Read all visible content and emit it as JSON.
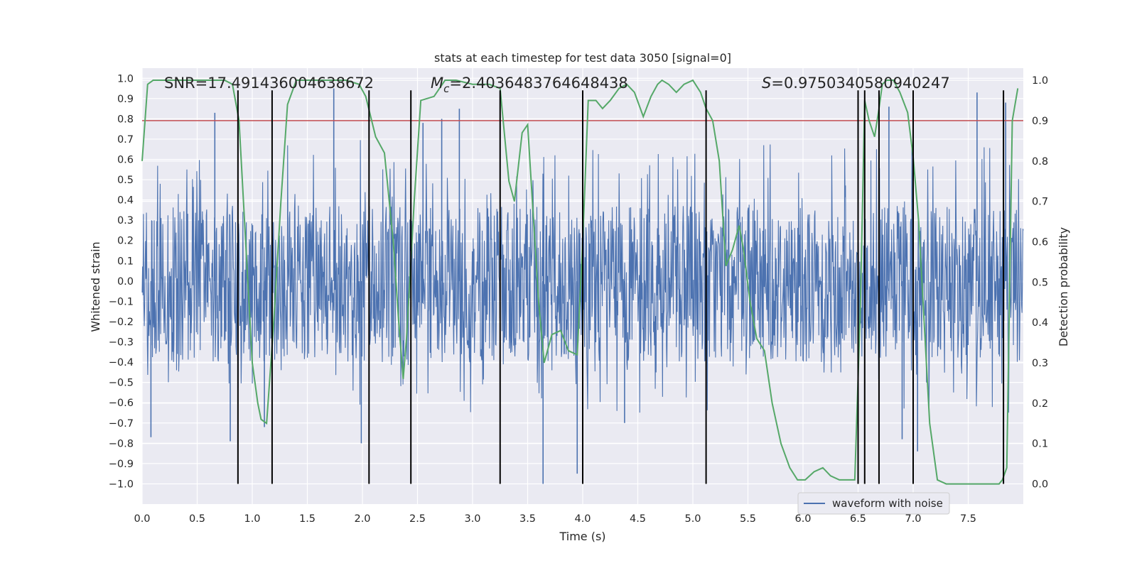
{
  "chart_data": {
    "type": "line",
    "title": "stats at each timestep for test data 3050 [signal=0]",
    "xlabel": "Time (s)",
    "ylabel": "Whitened strain",
    "y2label": "Detection probability",
    "xlim": [
      0.0,
      8.0
    ],
    "ylim": [
      -1.1,
      1.05
    ],
    "y2lim": [
      -0.05,
      1.03
    ],
    "grid": true,
    "background": "#eaeaf2",
    "x_ticks": [
      0.0,
      0.5,
      1.0,
      1.5,
      2.0,
      2.5,
      3.0,
      3.5,
      4.0,
      4.5,
      5.0,
      5.5,
      6.0,
      6.5,
      7.0,
      7.5
    ],
    "x_tick_labels": [
      "0.0",
      "0.5",
      "1.0",
      "1.5",
      "2.0",
      "2.5",
      "3.0",
      "3.5",
      "4.0",
      "4.5",
      "5.0",
      "5.5",
      "6.0",
      "6.5",
      "7.0",
      "7.5"
    ],
    "y_ticks": [
      1.0,
      0.9,
      0.8,
      0.7,
      0.6,
      0.5,
      0.4,
      0.3,
      0.2,
      0.1,
      0.0,
      -0.1,
      -0.2,
      -0.3,
      -0.4,
      -0.5,
      -0.6,
      -0.7,
      -0.8,
      -0.9,
      -1.0
    ],
    "y_tick_labels": [
      "1.0",
      "0.9",
      "0.8",
      "0.7",
      "0.6",
      "0.5",
      "0.4",
      "0.3",
      "0.2",
      "0.1",
      "0.0",
      "−0.1",
      "−0.2",
      "−0.3",
      "−0.4",
      "−0.5",
      "−0.6",
      "−0.7",
      "−0.8",
      "−0.9",
      "−1.0"
    ],
    "y2_ticks": [
      1.0,
      0.9,
      0.8,
      0.7,
      0.6,
      0.5,
      0.4,
      0.3,
      0.2,
      0.1,
      0.0
    ],
    "y2_tick_labels": [
      "1.0",
      "0.9",
      "0.8",
      "0.7",
      "0.6",
      "0.5",
      "0.4",
      "0.3",
      "0.2",
      "0.1",
      "0.0"
    ],
    "annotations": {
      "snr": "SNR=17.491436004638672",
      "mc_symbol": "M",
      "mc_subscript": "c",
      "mc_value": "=2.4036483764648438",
      "s_symbol": "S",
      "s_value": "=0.9750340580940247"
    },
    "legend": {
      "label": "waveform with noise",
      "position": "lower-right"
    },
    "threshold": {
      "value": 0.9,
      "axis": "y2",
      "color": "#c44e52"
    },
    "waveform": {
      "name": "waveform with noise",
      "color": "#4c72b0",
      "samples": 2048,
      "band_low": -0.4,
      "band_high": 0.37,
      "peak_max": 1.0,
      "trough_min": -1.0,
      "spikes": [
        {
          "x": 0.66,
          "y": 0.83
        },
        {
          "x": 1.74,
          "y": 0.95
        },
        {
          "x": 2.55,
          "y": 0.78
        },
        {
          "x": 2.72,
          "y": 0.8
        },
        {
          "x": 2.88,
          "y": 0.85
        },
        {
          "x": 6.78,
          "y": 0.86
        },
        {
          "x": 7.58,
          "y": 0.93
        },
        {
          "x": 7.84,
          "y": 0.88
        },
        {
          "x": 0.8,
          "y": -0.79
        },
        {
          "x": 0.08,
          "y": -0.77
        },
        {
          "x": 1.99,
          "y": -0.8
        },
        {
          "x": 3.64,
          "y": -1.0
        },
        {
          "x": 3.95,
          "y": -0.95
        },
        {
          "x": 7.04,
          "y": -0.84
        },
        {
          "x": 6.9,
          "y": -0.78
        },
        {
          "x": 1.11,
          "y": -0.72
        },
        {
          "x": 4.38,
          "y": -0.7
        },
        {
          "x": 6.56,
          "y": -0.78
        }
      ]
    },
    "probability": {
      "name": "detection probability",
      "color": "#55a868",
      "x": [
        0.0,
        0.05,
        0.1,
        0.2,
        0.4,
        0.6,
        0.75,
        0.82,
        0.88,
        0.95,
        1.0,
        1.05,
        1.08,
        1.13,
        1.19,
        1.26,
        1.32,
        1.4,
        1.6,
        1.85,
        1.97,
        2.03,
        2.12,
        2.2,
        2.28,
        2.33,
        2.37,
        2.4,
        2.44,
        2.47,
        2.53,
        2.65,
        2.75,
        2.85,
        3.0,
        3.15,
        3.25,
        3.33,
        3.38,
        3.45,
        3.5,
        3.6,
        3.65,
        3.72,
        3.8,
        3.87,
        3.95,
        4.0,
        4.05,
        4.12,
        4.18,
        4.25,
        4.33,
        4.4,
        4.47,
        4.55,
        4.62,
        4.68,
        4.72,
        4.78,
        4.85,
        4.92,
        5.0,
        5.07,
        5.12,
        5.18,
        5.24,
        5.3,
        5.36,
        5.42,
        5.46,
        5.52,
        5.58,
        5.65,
        5.72,
        5.8,
        5.88,
        5.95,
        6.02,
        6.1,
        6.18,
        6.25,
        6.33,
        6.4,
        6.47,
        6.52,
        6.56,
        6.6,
        6.65,
        6.69,
        6.72,
        6.76,
        6.82,
        6.88,
        6.95,
        7.0,
        7.05,
        7.1,
        7.15,
        7.22,
        7.3,
        7.45,
        7.6,
        7.72,
        7.78,
        7.81,
        7.85,
        7.9,
        7.95
      ],
      "y": [
        0.8,
        0.99,
        1.0,
        1.0,
        1.0,
        1.0,
        1.0,
        0.99,
        0.9,
        0.55,
        0.3,
        0.2,
        0.16,
        0.15,
        0.38,
        0.7,
        0.94,
        1.0,
        1.0,
        1.0,
        0.99,
        0.96,
        0.86,
        0.82,
        0.6,
        0.4,
        0.26,
        0.36,
        0.55,
        0.7,
        0.95,
        0.96,
        1.0,
        1.0,
        0.99,
        0.99,
        0.98,
        0.75,
        0.7,
        0.87,
        0.89,
        0.45,
        0.3,
        0.37,
        0.38,
        0.33,
        0.32,
        0.6,
        0.95,
        0.95,
        0.93,
        0.95,
        0.98,
        0.99,
        0.97,
        0.91,
        0.96,
        0.99,
        1.0,
        0.99,
        0.97,
        0.99,
        1.0,
        0.97,
        0.93,
        0.9,
        0.8,
        0.54,
        0.58,
        0.64,
        0.58,
        0.45,
        0.36,
        0.33,
        0.2,
        0.1,
        0.04,
        0.01,
        0.01,
        0.03,
        0.04,
        0.02,
        0.01,
        0.01,
        0.01,
        0.43,
        0.95,
        0.9,
        0.86,
        0.93,
        0.99,
        1.0,
        1.0,
        0.97,
        0.92,
        0.81,
        0.65,
        0.4,
        0.15,
        0.01,
        0.0,
        0.0,
        0.0,
        0.0,
        0.0,
        0.01,
        0.04,
        0.9,
        0.98
      ]
    },
    "vlines": [
      0.87,
      1.18,
      2.06,
      2.44,
      3.25,
      4.0,
      5.12,
      6.5,
      6.56,
      6.69,
      7.0,
      7.82
    ],
    "vline_range": [
      -1.0,
      0.975
    ]
  }
}
